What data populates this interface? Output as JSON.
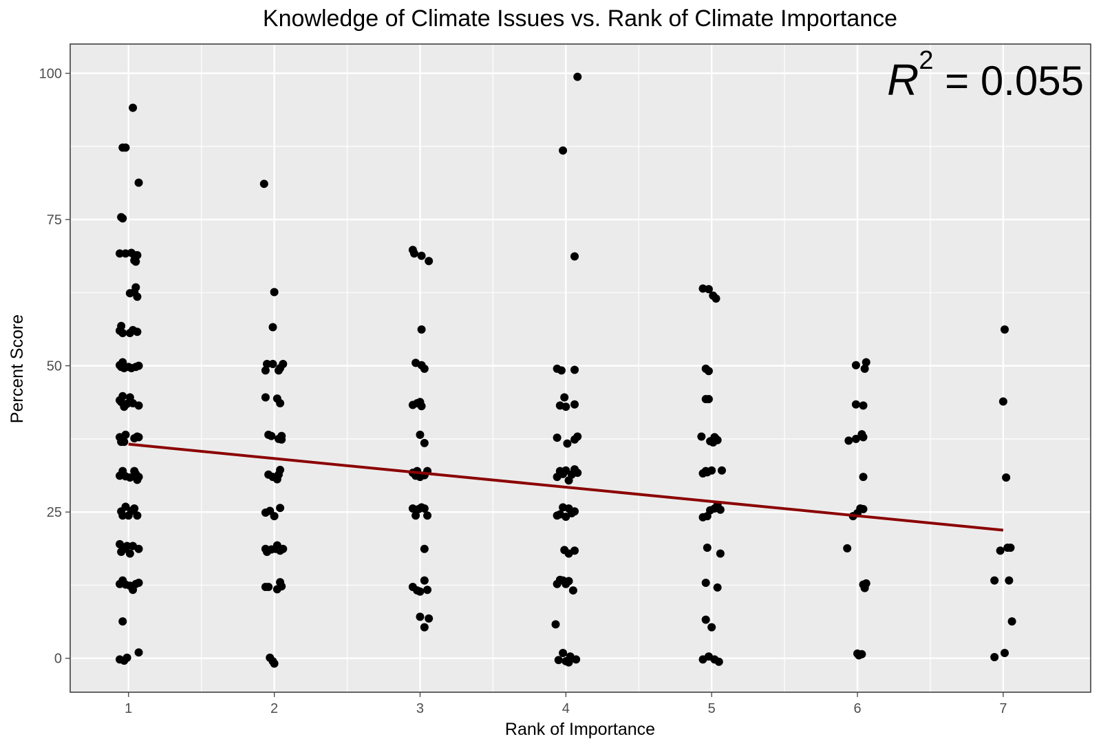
{
  "chart_data": {
    "type": "scatter",
    "title": "Knowledge of Climate Issues vs. Rank of Climate Importance",
    "xlabel": "Rank of Importance",
    "ylabel": "Percent Score",
    "xlim": [
      0.6,
      7.6
    ],
    "ylim": [
      -5.8,
      105
    ],
    "x_ticks": [
      1,
      2,
      3,
      4,
      5,
      6,
      7
    ],
    "x_tick_labels": [
      "1",
      "2",
      "3",
      "4",
      "5",
      "6",
      "7"
    ],
    "y_ticks": [
      0,
      25,
      50,
      75,
      100
    ],
    "y_tick_labels": [
      "0",
      "25",
      "50",
      "75",
      "100"
    ],
    "grid": true,
    "legend": "none",
    "colors": {
      "panel": "#ebebeb",
      "grid": "#ffffff",
      "point": "#000000",
      "trend": "#8b0000"
    },
    "annotation": {
      "base": "R",
      "superscript": "2",
      "text": " = 0.055"
    },
    "trend_line": {
      "x": [
        1,
        7
      ],
      "y": [
        36.6,
        21.9
      ]
    },
    "points": [
      {
        "x": 1.03,
        "y": 94.1
      },
      {
        "x": 0.98,
        "y": 87.3
      },
      {
        "x": 0.96,
        "y": 87.3
      },
      {
        "x": 1.07,
        "y": 81.3
      },
      {
        "x": 0.95,
        "y": 75.4
      },
      {
        "x": 0.96,
        "y": 75.2
      },
      {
        "x": 0.94,
        "y": 69.2
      },
      {
        "x": 0.98,
        "y": 69.2
      },
      {
        "x": 1.02,
        "y": 69.3
      },
      {
        "x": 1.04,
        "y": 68.9
      },
      {
        "x": 1.06,
        "y": 68.9
      },
      {
        "x": 1.04,
        "y": 68.0
      },
      {
        "x": 1.05,
        "y": 67.8
      },
      {
        "x": 1.01,
        "y": 62.4
      },
      {
        "x": 1.04,
        "y": 62.6
      },
      {
        "x": 1.05,
        "y": 63.4
      },
      {
        "x": 1.06,
        "y": 61.8
      },
      {
        "x": 0.95,
        "y": 56.8
      },
      {
        "x": 0.94,
        "y": 56.0
      },
      {
        "x": 0.96,
        "y": 55.6
      },
      {
        "x": 1.01,
        "y": 55.6
      },
      {
        "x": 1.03,
        "y": 56.1
      },
      {
        "x": 1.06,
        "y": 55.8
      },
      {
        "x": 0.94,
        "y": 50.1
      },
      {
        "x": 0.96,
        "y": 50.6
      },
      {
        "x": 0.97,
        "y": 49.6
      },
      {
        "x": 1.0,
        "y": 49.8
      },
      {
        "x": 1.02,
        "y": 49.6
      },
      {
        "x": 1.05,
        "y": 49.8
      },
      {
        "x": 1.07,
        "y": 50.0
      },
      {
        "x": 0.95,
        "y": 49.8
      },
      {
        "x": 0.94,
        "y": 44.1
      },
      {
        "x": 0.96,
        "y": 44.8
      },
      {
        "x": 0.97,
        "y": 43.0
      },
      {
        "x": 0.99,
        "y": 43.5
      },
      {
        "x": 1.01,
        "y": 44.6
      },
      {
        "x": 1.03,
        "y": 43.6
      },
      {
        "x": 1.07,
        "y": 43.2
      },
      {
        "x": 0.95,
        "y": 43.8
      },
      {
        "x": 0.94,
        "y": 37.8
      },
      {
        "x": 0.95,
        "y": 37.0
      },
      {
        "x": 0.97,
        "y": 37.0
      },
      {
        "x": 0.98,
        "y": 38.2
      },
      {
        "x": 1.04,
        "y": 37.6
      },
      {
        "x": 1.06,
        "y": 37.9
      },
      {
        "x": 1.07,
        "y": 37.8
      },
      {
        "x": 0.94,
        "y": 31.2
      },
      {
        "x": 0.96,
        "y": 32.0
      },
      {
        "x": 0.98,
        "y": 31.1
      },
      {
        "x": 1.01,
        "y": 30.9
      },
      {
        "x": 1.04,
        "y": 32.0
      },
      {
        "x": 1.05,
        "y": 31.5
      },
      {
        "x": 1.06,
        "y": 30.5
      },
      {
        "x": 1.07,
        "y": 31.0
      },
      {
        "x": 0.95,
        "y": 25.1
      },
      {
        "x": 0.96,
        "y": 24.4
      },
      {
        "x": 0.98,
        "y": 25.9
      },
      {
        "x": 1.0,
        "y": 24.4
      },
      {
        "x": 1.02,
        "y": 25.2
      },
      {
        "x": 1.04,
        "y": 25.6
      },
      {
        "x": 1.06,
        "y": 24.4
      },
      {
        "x": 0.94,
        "y": 19.5
      },
      {
        "x": 0.95,
        "y": 18.2
      },
      {
        "x": 0.97,
        "y": 18.7
      },
      {
        "x": 0.99,
        "y": 19.2
      },
      {
        "x": 1.01,
        "y": 17.9
      },
      {
        "x": 1.03,
        "y": 19.2
      },
      {
        "x": 1.07,
        "y": 18.7
      },
      {
        "x": 0.94,
        "y": 12.7
      },
      {
        "x": 0.96,
        "y": 13.3
      },
      {
        "x": 0.98,
        "y": 12.6
      },
      {
        "x": 1.01,
        "y": 12.4
      },
      {
        "x": 1.03,
        "y": 11.7
      },
      {
        "x": 1.05,
        "y": 12.7
      },
      {
        "x": 1.07,
        "y": 12.9
      },
      {
        "x": 0.96,
        "y": 6.3
      },
      {
        "x": 0.94,
        "y": -0.2
      },
      {
        "x": 0.97,
        "y": -0.4
      },
      {
        "x": 0.99,
        "y": 0.1
      },
      {
        "x": 1.07,
        "y": 1.0
      },
      {
        "x": 1.93,
        "y": 81.1
      },
      {
        "x": 2.0,
        "y": 62.6
      },
      {
        "x": 1.99,
        "y": 56.6
      },
      {
        "x": 1.94,
        "y": 49.2
      },
      {
        "x": 1.95,
        "y": 50.3
      },
      {
        "x": 1.99,
        "y": 50.3
      },
      {
        "x": 2.03,
        "y": 49.2
      },
      {
        "x": 2.04,
        "y": 49.6
      },
      {
        "x": 2.06,
        "y": 50.3
      },
      {
        "x": 1.94,
        "y": 44.6
      },
      {
        "x": 2.02,
        "y": 44.4
      },
      {
        "x": 2.04,
        "y": 43.6
      },
      {
        "x": 1.96,
        "y": 38.2
      },
      {
        "x": 1.98,
        "y": 38.0
      },
      {
        "x": 2.03,
        "y": 37.5
      },
      {
        "x": 2.05,
        "y": 38.0
      },
      {
        "x": 2.05,
        "y": 37.4
      },
      {
        "x": 1.96,
        "y": 31.4
      },
      {
        "x": 1.99,
        "y": 31.0
      },
      {
        "x": 2.02,
        "y": 30.6
      },
      {
        "x": 2.04,
        "y": 32.2
      },
      {
        "x": 2.03,
        "y": 31.4
      },
      {
        "x": 1.94,
        "y": 24.9
      },
      {
        "x": 1.97,
        "y": 25.2
      },
      {
        "x": 2.0,
        "y": 24.3
      },
      {
        "x": 2.04,
        "y": 25.7
      },
      {
        "x": 1.94,
        "y": 18.7
      },
      {
        "x": 1.95,
        "y": 18.2
      },
      {
        "x": 1.98,
        "y": 18.6
      },
      {
        "x": 2.01,
        "y": 18.7
      },
      {
        "x": 2.02,
        "y": 19.3
      },
      {
        "x": 2.04,
        "y": 18.4
      },
      {
        "x": 2.06,
        "y": 18.7
      },
      {
        "x": 1.94,
        "y": 12.2
      },
      {
        "x": 1.96,
        "y": 12.2
      },
      {
        "x": 2.02,
        "y": 11.8
      },
      {
        "x": 2.04,
        "y": 13.0
      },
      {
        "x": 2.05,
        "y": 12.3
      },
      {
        "x": 1.97,
        "y": 0.1
      },
      {
        "x": 1.99,
        "y": -0.5
      },
      {
        "x": 2.0,
        "y": -0.9
      },
      {
        "x": 2.95,
        "y": 69.8
      },
      {
        "x": 2.96,
        "y": 69.2
      },
      {
        "x": 3.01,
        "y": 68.8
      },
      {
        "x": 3.06,
        "y": 67.9
      },
      {
        "x": 3.01,
        "y": 56.2
      },
      {
        "x": 2.97,
        "y": 50.5
      },
      {
        "x": 3.01,
        "y": 50.1
      },
      {
        "x": 3.03,
        "y": 49.5
      },
      {
        "x": 2.95,
        "y": 43.3
      },
      {
        "x": 2.98,
        "y": 43.6
      },
      {
        "x": 3.0,
        "y": 43.8
      },
      {
        "x": 3.01,
        "y": 43.1
      },
      {
        "x": 3.0,
        "y": 38.2
      },
      {
        "x": 3.03,
        "y": 36.8
      },
      {
        "x": 2.95,
        "y": 31.7
      },
      {
        "x": 2.97,
        "y": 31.2
      },
      {
        "x": 2.98,
        "y": 32.0
      },
      {
        "x": 3.0,
        "y": 31.0
      },
      {
        "x": 3.03,
        "y": 31.3
      },
      {
        "x": 3.05,
        "y": 32.0
      },
      {
        "x": 2.95,
        "y": 25.6
      },
      {
        "x": 2.97,
        "y": 24.4
      },
      {
        "x": 2.99,
        "y": 25.5
      },
      {
        "x": 3.01,
        "y": 25.8
      },
      {
        "x": 3.03,
        "y": 25.6
      },
      {
        "x": 3.05,
        "y": 24.4
      },
      {
        "x": 3.03,
        "y": 18.7
      },
      {
        "x": 2.95,
        "y": 12.2
      },
      {
        "x": 2.98,
        "y": 11.6
      },
      {
        "x": 3.0,
        "y": 11.4
      },
      {
        "x": 3.03,
        "y": 13.3
      },
      {
        "x": 3.05,
        "y": 11.7
      },
      {
        "x": 3.0,
        "y": 7.1
      },
      {
        "x": 3.03,
        "y": 5.3
      },
      {
        "x": 3.06,
        "y": 6.8
      },
      {
        "x": 4.08,
        "y": 99.4
      },
      {
        "x": 3.98,
        "y": 86.8
      },
      {
        "x": 4.06,
        "y": 68.7
      },
      {
        "x": 3.94,
        "y": 49.5
      },
      {
        "x": 3.97,
        "y": 49.2
      },
      {
        "x": 4.06,
        "y": 49.3
      },
      {
        "x": 3.99,
        "y": 44.6
      },
      {
        "x": 3.96,
        "y": 43.2
      },
      {
        "x": 4.0,
        "y": 43.0
      },
      {
        "x": 4.06,
        "y": 43.4
      },
      {
        "x": 3.94,
        "y": 37.7
      },
      {
        "x": 4.01,
        "y": 36.7
      },
      {
        "x": 4.06,
        "y": 37.4
      },
      {
        "x": 4.08,
        "y": 37.9
      },
      {
        "x": 3.94,
        "y": 31.0
      },
      {
        "x": 3.96,
        "y": 32.0
      },
      {
        "x": 3.98,
        "y": 31.5
      },
      {
        "x": 4.0,
        "y": 32.1
      },
      {
        "x": 4.02,
        "y": 30.4
      },
      {
        "x": 4.04,
        "y": 31.4
      },
      {
        "x": 4.06,
        "y": 32.3
      },
      {
        "x": 4.08,
        "y": 31.7
      },
      {
        "x": 3.94,
        "y": 24.4
      },
      {
        "x": 3.96,
        "y": 24.6
      },
      {
        "x": 3.98,
        "y": 25.8
      },
      {
        "x": 4.0,
        "y": 24.2
      },
      {
        "x": 4.02,
        "y": 25.6
      },
      {
        "x": 4.04,
        "y": 24.8
      },
      {
        "x": 4.06,
        "y": 25.1
      },
      {
        "x": 3.99,
        "y": 18.5
      },
      {
        "x": 4.02,
        "y": 17.9
      },
      {
        "x": 4.06,
        "y": 18.4
      },
      {
        "x": 3.94,
        "y": 12.7
      },
      {
        "x": 3.96,
        "y": 13.4
      },
      {
        "x": 3.98,
        "y": 13.3
      },
      {
        "x": 4.0,
        "y": 12.7
      },
      {
        "x": 4.02,
        "y": 13.2
      },
      {
        "x": 4.05,
        "y": 11.6
      },
      {
        "x": 3.93,
        "y": 5.8
      },
      {
        "x": 3.98,
        "y": 0.9
      },
      {
        "x": 3.95,
        "y": -0.3
      },
      {
        "x": 4.0,
        "y": -0.5
      },
      {
        "x": 4.02,
        "y": -0.7
      },
      {
        "x": 4.03,
        "y": 0.3
      },
      {
        "x": 4.07,
        "y": -0.2
      },
      {
        "x": 4.94,
        "y": 63.2
      },
      {
        "x": 4.98,
        "y": 63.1
      },
      {
        "x": 5.01,
        "y": 62.0
      },
      {
        "x": 5.03,
        "y": 61.5
      },
      {
        "x": 4.96,
        "y": 49.5
      },
      {
        "x": 4.98,
        "y": 49.1
      },
      {
        "x": 4.96,
        "y": 44.3
      },
      {
        "x": 4.98,
        "y": 44.3
      },
      {
        "x": 4.93,
        "y": 37.9
      },
      {
        "x": 4.99,
        "y": 37.1
      },
      {
        "x": 5.01,
        "y": 36.9
      },
      {
        "x": 5.03,
        "y": 37.5
      },
      {
        "x": 5.04,
        "y": 37.3
      },
      {
        "x": 5.02,
        "y": 37.8
      },
      {
        "x": 4.94,
        "y": 31.6
      },
      {
        "x": 4.96,
        "y": 32.0
      },
      {
        "x": 4.97,
        "y": 31.8
      },
      {
        "x": 5.0,
        "y": 32.1
      },
      {
        "x": 5.07,
        "y": 32.1
      },
      {
        "x": 4.94,
        "y": 24.1
      },
      {
        "x": 4.97,
        "y": 24.3
      },
      {
        "x": 4.99,
        "y": 25.3
      },
      {
        "x": 5.02,
        "y": 25.6
      },
      {
        "x": 5.04,
        "y": 26.2
      },
      {
        "x": 5.06,
        "y": 25.4
      },
      {
        "x": 4.97,
        "y": 18.9
      },
      {
        "x": 5.06,
        "y": 17.9
      },
      {
        "x": 4.96,
        "y": 12.9
      },
      {
        "x": 5.04,
        "y": 12.1
      },
      {
        "x": 4.96,
        "y": 6.6
      },
      {
        "x": 5.0,
        "y": 5.3
      },
      {
        "x": 4.94,
        "y": -0.2
      },
      {
        "x": 4.98,
        "y": 0.3
      },
      {
        "x": 5.02,
        "y": -0.2
      },
      {
        "x": 5.05,
        "y": -0.6
      },
      {
        "x": 5.99,
        "y": 50.1
      },
      {
        "x": 6.05,
        "y": 49.5
      },
      {
        "x": 6.06,
        "y": 50.6
      },
      {
        "x": 5.99,
        "y": 43.4
      },
      {
        "x": 6.04,
        "y": 43.2
      },
      {
        "x": 5.94,
        "y": 37.2
      },
      {
        "x": 5.99,
        "y": 37.5
      },
      {
        "x": 6.03,
        "y": 38.3
      },
      {
        "x": 6.04,
        "y": 37.8
      },
      {
        "x": 6.04,
        "y": 31.0
      },
      {
        "x": 5.97,
        "y": 24.3
      },
      {
        "x": 6.0,
        "y": 24.8
      },
      {
        "x": 6.02,
        "y": 25.6
      },
      {
        "x": 6.04,
        "y": 25.5
      },
      {
        "x": 5.93,
        "y": 18.8
      },
      {
        "x": 6.04,
        "y": 12.6
      },
      {
        "x": 6.05,
        "y": 12.0
      },
      {
        "x": 6.06,
        "y": 12.8
      },
      {
        "x": 6.05,
        "y": 12.3
      },
      {
        "x": 6.0,
        "y": 0.8
      },
      {
        "x": 6.01,
        "y": 0.5
      },
      {
        "x": 6.03,
        "y": 0.7
      },
      {
        "x": 7.01,
        "y": 56.2
      },
      {
        "x": 7.0,
        "y": 43.9
      },
      {
        "x": 7.02,
        "y": 30.9
      },
      {
        "x": 6.98,
        "y": 18.4
      },
      {
        "x": 7.03,
        "y": 18.9
      },
      {
        "x": 7.05,
        "y": 18.9
      },
      {
        "x": 6.94,
        "y": 13.3
      },
      {
        "x": 7.04,
        "y": 13.3
      },
      {
        "x": 7.06,
        "y": 6.3
      },
      {
        "x": 6.94,
        "y": 0.2
      },
      {
        "x": 7.01,
        "y": 0.9
      }
    ]
  }
}
